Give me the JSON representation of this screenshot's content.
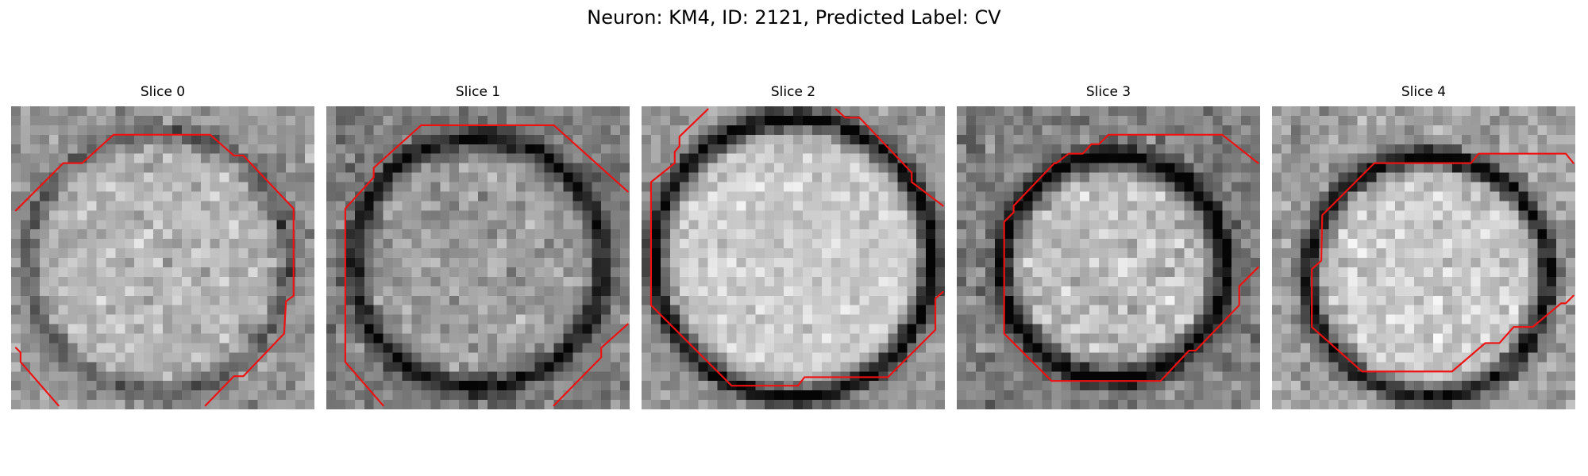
{
  "figure": {
    "title": "Neuron: KM4, ID: 2121, Predicted Label: CV",
    "grid_size": 32,
    "seed": 2121
  },
  "colors": {
    "background": "#ffffff",
    "contour": "#ee1111"
  },
  "slices": [
    {
      "title": "Slice 0",
      "center": [
        15.5,
        16.5
      ],
      "radius": 13.5,
      "membrane_darkness": 0.28,
      "interior_level": 0.72,
      "exterior_level": 0.6,
      "noise": 0.14,
      "contours": [
        [
          [
            0.5,
            11
          ],
          [
            3,
            8.5
          ],
          [
            5.5,
            6
          ],
          [
            7.5,
            6
          ],
          [
            10.8,
            3
          ],
          [
            21,
            3
          ],
          [
            23.5,
            5.2
          ],
          [
            24.5,
            5.2
          ],
          [
            29.8,
            10.8
          ],
          [
            29.8,
            20
          ],
          [
            29,
            20.6
          ],
          [
            28.8,
            24
          ],
          [
            24.5,
            28.5
          ],
          [
            23.5,
            28.5
          ],
          [
            20.5,
            31.6
          ]
        ],
        [
          [
            0.5,
            25.5
          ],
          [
            1,
            26
          ],
          [
            1,
            27
          ],
          [
            5,
            31.6
          ]
        ]
      ]
    },
    {
      "title": "Slice 1",
      "center": [
        16.0,
        16.5
      ],
      "radius": 13.0,
      "membrane_darkness": 0.45,
      "interior_level": 0.62,
      "exterior_level": 0.5,
      "noise": 0.14,
      "contours": [
        [
          [
            31.8,
            9
          ],
          [
            24,
            2
          ],
          [
            10,
            2
          ],
          [
            5,
            6.5
          ],
          [
            5,
            7.5
          ],
          [
            2,
            10.8
          ],
          [
            2,
            27
          ],
          [
            6,
            31.6
          ]
        ],
        [
          [
            24,
            31.6
          ],
          [
            29,
            26.5
          ],
          [
            29,
            25.5
          ],
          [
            31.8,
            23
          ]
        ]
      ]
    },
    {
      "title": "Slice 2",
      "center": [
        16.0,
        16.0
      ],
      "radius": 14.5,
      "membrane_darkness": 0.62,
      "interior_level": 0.8,
      "exterior_level": 0.6,
      "noise": 0.12,
      "contours": [
        [
          [
            7,
            0.3
          ],
          [
            4,
            3.2
          ],
          [
            4,
            4.2
          ],
          [
            3.5,
            4.8
          ],
          [
            3.5,
            6
          ],
          [
            1,
            8
          ],
          [
            1,
            21
          ],
          [
            9.5,
            29.5
          ],
          [
            16.5,
            29.5
          ],
          [
            17.2,
            28.6
          ],
          [
            26,
            28.6
          ],
          [
            31,
            23.6
          ],
          [
            31,
            20.3
          ],
          [
            31.8,
            19.6
          ]
        ],
        [
          [
            20.5,
            0.3
          ],
          [
            21.5,
            1.2
          ],
          [
            23,
            1.2
          ],
          [
            28.5,
            7
          ],
          [
            28.5,
            8
          ],
          [
            31.8,
            10.5
          ]
        ]
      ]
    },
    {
      "title": "Slice 3",
      "center": [
        16.5,
        17.0
      ],
      "radius": 11.5,
      "membrane_darkness": 0.58,
      "interior_level": 0.74,
      "exterior_level": 0.5,
      "noise": 0.15,
      "contours": [
        [
          [
            31.8,
            6
          ],
          [
            28,
            3
          ],
          [
            16,
            3
          ],
          [
            15,
            4
          ],
          [
            14.2,
            4
          ],
          [
            13.3,
            5
          ],
          [
            11.8,
            5
          ],
          [
            10.5,
            6
          ],
          [
            10.3,
            6
          ],
          [
            6,
            10.5
          ],
          [
            6,
            11.2
          ],
          [
            5,
            12.2
          ],
          [
            5,
            24
          ],
          [
            10,
            29
          ],
          [
            21.5,
            29
          ],
          [
            24.5,
            25.8
          ],
          [
            25.2,
            25.8
          ],
          [
            29.8,
            21
          ],
          [
            29.8,
            19
          ],
          [
            31.8,
            17
          ]
        ]
      ]
    },
    {
      "title": "Slice 4",
      "center": [
        16.5,
        18.0
      ],
      "radius": 12.5,
      "membrane_darkness": 0.6,
      "interior_level": 0.8,
      "exterior_level": 0.62,
      "noise": 0.15,
      "contours": [
        [
          [
            31.8,
            6
          ],
          [
            31,
            5
          ],
          [
            21.8,
            5
          ],
          [
            21,
            6
          ],
          [
            10.8,
            6
          ],
          [
            5.3,
            11.5
          ],
          [
            5.2,
            16.3
          ],
          [
            4.2,
            17.2
          ],
          [
            4.2,
            23.3
          ],
          [
            9.5,
            28
          ],
          [
            19,
            28
          ],
          [
            22.5,
            25
          ],
          [
            24,
            25
          ],
          [
            25.5,
            23.3
          ],
          [
            27.5,
            23.3
          ],
          [
            30.5,
            20.8
          ],
          [
            31,
            20.8
          ],
          [
            31.8,
            20
          ]
        ]
      ]
    }
  ]
}
